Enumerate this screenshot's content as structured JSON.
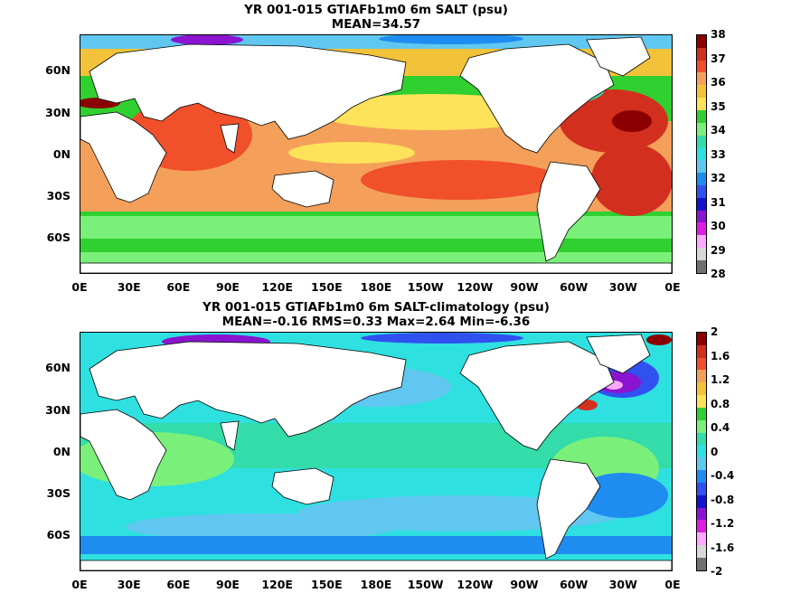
{
  "panels": [
    {
      "id": "top",
      "title_line1": "YR 001-015 GTIAFb1m0 6m SALT (psu)",
      "title_line2": "MEAN=34.57",
      "colorbar_labels": [
        "38",
        "37",
        "36",
        "35",
        "34",
        "33",
        "32",
        "31",
        "30",
        "29",
        "28"
      ],
      "colorbar_colors": [
        "#8b0000",
        "#d32f1f",
        "#f0502a",
        "#f4a05a",
        "#f2c23a",
        "#fde25a",
        "#2fd02f",
        "#7af07a",
        "#33dca8",
        "#2fe0e0",
        "#60c8f0",
        "#1f8cf0",
        "#3050f0",
        "#1414d0",
        "#8a14d0",
        "#e01ee0",
        "#ffa8ff",
        "#d8d8d8",
        "#707070"
      ]
    },
    {
      "id": "bottom",
      "title_line1": "YR 001-015 GTIAFb1m0 6m SALT-climatology (psu)",
      "title_line2": "MEAN=-0.16   RMS=0.33   Max=2.64   Min=-6.36",
      "colorbar_labels": [
        "2",
        "1.6",
        "1.2",
        "0.8",
        "0.4",
        "0",
        "-0.4",
        "-0.8",
        "-1.2",
        "-1.6",
        "-2"
      ],
      "colorbar_colors": [
        "#8b0000",
        "#d32f1f",
        "#f0502a",
        "#f4a05a",
        "#f2c23a",
        "#fde25a",
        "#2fd02f",
        "#7af07a",
        "#33dca8",
        "#2fe0e0",
        "#60c8f0",
        "#1f8cf0",
        "#3050f0",
        "#1414d0",
        "#8a14d0",
        "#e01ee0",
        "#ffa8ff",
        "#d8d8d8",
        "#707070"
      ]
    }
  ],
  "lat_labels": [
    "60N",
    "30N",
    "0N",
    "30S",
    "60S"
  ],
  "lon_labels": [
    "0E",
    "30E",
    "60E",
    "90E",
    "120E",
    "150E",
    "180E",
    "150W",
    "120W",
    "90W",
    "60W",
    "30W",
    "0E"
  ]
}
